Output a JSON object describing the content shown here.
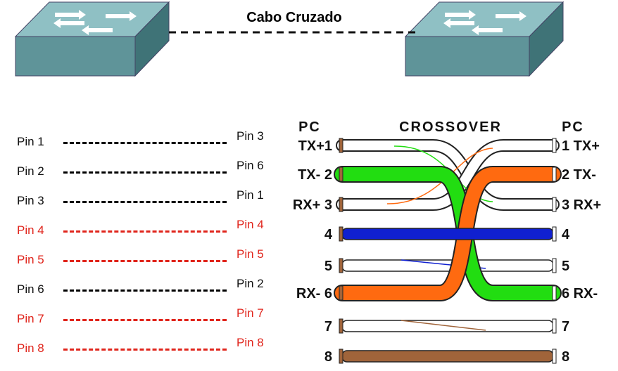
{
  "title": "Cabo Cruzado",
  "pin_map": [
    {
      "left": "Pin 1",
      "right": "Pin 3",
      "color": "#111111"
    },
    {
      "left": "Pin 2",
      "right": "Pin 6",
      "color": "#111111"
    },
    {
      "left": "Pin 3",
      "right": "Pin 1",
      "color": "#111111"
    },
    {
      "left": "Pin 4",
      "right": "Pin 4",
      "color": "#e0241b"
    },
    {
      "left": "Pin 5",
      "right": "Pin 5",
      "color": "#e0241b"
    },
    {
      "left": "Pin 6",
      "right": "Pin 2",
      "color": "#111111"
    },
    {
      "left": "Pin 7",
      "right": "Pin 7",
      "color": "#e0241b"
    },
    {
      "left": "Pin 8",
      "right": "Pin 8",
      "color": "#e0241b"
    }
  ],
  "wiring": {
    "left_header": "PC",
    "center_header": "CROSSOVER",
    "right_header": "PC",
    "left_labels": [
      "TX+1",
      "TX- 2",
      "RX+ 3",
      "4",
      "5",
      "RX- 6",
      "7",
      "8"
    ],
    "right_labels": [
      "1 TX+",
      "2 TX-",
      "3 RX+",
      "4",
      "5",
      "6 RX-",
      "7",
      "8"
    ],
    "colors": {
      "green": "#22dd11",
      "orange": "#ff6a10",
      "blue": "#1020d0",
      "brown": "#a0643a",
      "white": "#ffffff",
      "switch_top": "#6fa3a8",
      "switch_side": "#4f8388"
    }
  }
}
